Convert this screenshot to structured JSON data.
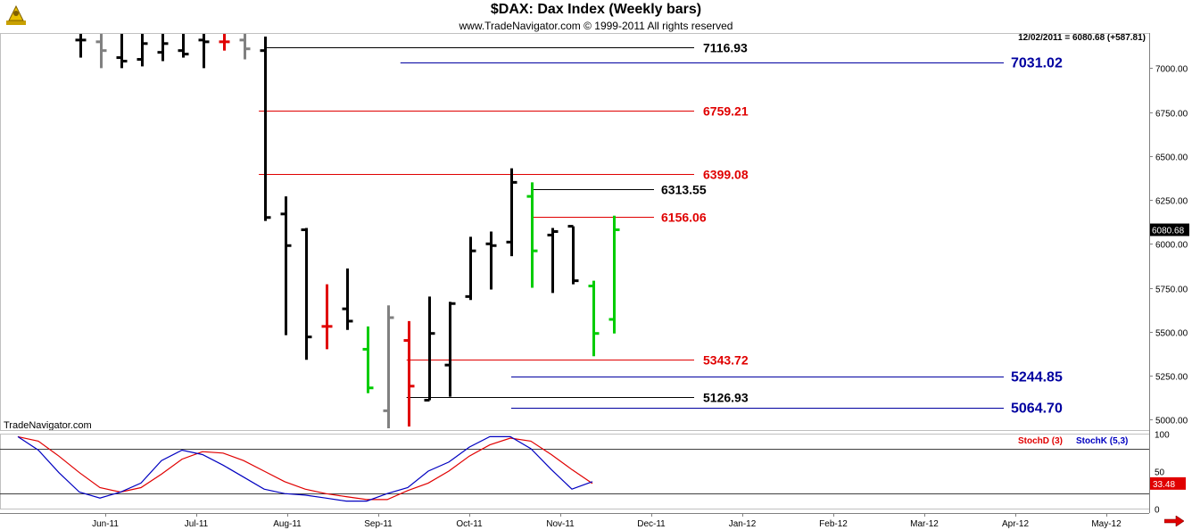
{
  "header": {
    "title": "$DAX:  Dax Index  (Weekly bars)",
    "subtitle": "www.TradeNavigator.com © 1999-2011 All rights reserved",
    "watermark": "TradeNavigator.com",
    "readout": "12/02/2011 = 6080.68 (+587.81)"
  },
  "colors": {
    "up": "#000000",
    "down_red": "#e00000",
    "gray": "#808080",
    "green": "#00cc00",
    "level_black": "#000000",
    "level_red": "#e00000",
    "level_blue": "#0000a0",
    "stochD": "#e00000",
    "stochK": "#0000c0",
    "last_price_bg": "#000000",
    "stoch_badge_bg": "#e00000"
  },
  "chart_data": [
    {
      "type": "bar",
      "subtype": "ohlc",
      "title": "$DAX:  Dax Index  (Weekly bars)",
      "ylim": [
        4940,
        7200
      ],
      "yticks": [
        "7000.00",
        "6750.00",
        "6500.00",
        "6250.00",
        "6000.00",
        "5750.00",
        "5500.00",
        "5250.00",
        "5000.00"
      ],
      "ytick_values": [
        7000,
        6750,
        6500,
        6250,
        6000,
        5750,
        5500,
        5250,
        5000
      ],
      "xticks": [
        "Jun-11",
        "Jul-11",
        "Aug-11",
        "Sep-11",
        "Oct-11",
        "Nov-11",
        "Dec-11",
        "Jan-12",
        "Feb-12",
        "Mar-12",
        "Apr-12",
        "May-12"
      ],
      "last_price_label": "6080.68",
      "bars": [
        {
          "o": 7160,
          "h": 7200,
          "l": 7060,
          "c": 7160,
          "color": "black"
        },
        {
          "o": 7150,
          "h": 7200,
          "l": 7000,
          "c": 7100,
          "color": "gray"
        },
        {
          "o": 7060,
          "h": 7200,
          "l": 7000,
          "c": 7040,
          "color": "black"
        },
        {
          "o": 7050,
          "h": 7200,
          "l": 7010,
          "c": 7140,
          "color": "black"
        },
        {
          "o": 7090,
          "h": 7200,
          "l": 7040,
          "c": 7140,
          "color": "black"
        },
        {
          "o": 7100,
          "h": 7200,
          "l": 7060,
          "c": 7080,
          "color": "black"
        },
        {
          "o": 7160,
          "h": 7200,
          "l": 7000,
          "c": 7150,
          "color": "black"
        },
        {
          "o": 7150,
          "h": 7200,
          "l": 7100,
          "c": 7150,
          "color": "red"
        },
        {
          "o": 7160,
          "h": 7200,
          "l": 7050,
          "c": 7110,
          "color": "gray"
        },
        {
          "o": 7100,
          "h": 7180,
          "l": 6130,
          "c": 6150,
          "color": "black"
        },
        {
          "o": 6170,
          "h": 6270,
          "l": 5480,
          "c": 5990,
          "color": "black"
        },
        {
          "o": 6080,
          "h": 6090,
          "l": 5340,
          "c": 5470,
          "color": "black"
        },
        {
          "o": 5530,
          "h": 5770,
          "l": 5400,
          "c": 5530,
          "color": "red"
        },
        {
          "o": 5630,
          "h": 5860,
          "l": 5510,
          "c": 5560,
          "color": "black"
        },
        {
          "o": 5400,
          "h": 5530,
          "l": 5150,
          "c": 5180,
          "color": "green"
        },
        {
          "o": 5050,
          "h": 5650,
          "l": 4950,
          "c": 5580,
          "color": "gray"
        },
        {
          "o": 5450,
          "h": 5560,
          "l": 4960,
          "c": 5190,
          "color": "red"
        },
        {
          "o": 5110,
          "h": 5700,
          "l": 5110,
          "c": 5490,
          "color": "black"
        },
        {
          "o": 5310,
          "h": 5670,
          "l": 5130,
          "c": 5660,
          "color": "black"
        },
        {
          "o": 5700,
          "h": 6040,
          "l": 5680,
          "c": 5960,
          "color": "black"
        },
        {
          "o": 6000,
          "h": 6070,
          "l": 5740,
          "c": 5990,
          "color": "black"
        },
        {
          "o": 6010,
          "h": 6430,
          "l": 5930,
          "c": 6350,
          "color": "black"
        },
        {
          "o": 6270,
          "h": 6350,
          "l": 5750,
          "c": 5960,
          "color": "green"
        },
        {
          "o": 6050,
          "h": 6090,
          "l": 5720,
          "c": 6070,
          "color": "black"
        },
        {
          "o": 6100,
          "h": 6100,
          "l": 5770,
          "c": 5790,
          "color": "black"
        },
        {
          "o": 5760,
          "h": 5790,
          "l": 5360,
          "c": 5490,
          "color": "green"
        },
        {
          "o": 5570,
          "h": 6160,
          "l": 5490,
          "c": 6080,
          "color": "green"
        }
      ],
      "levels": [
        {
          "value": 7116.93,
          "label": "7116.93",
          "color": "black",
          "x_start_bar": 9
        },
        {
          "value": 7031.02,
          "label": "7031.02",
          "color": "blue",
          "x_start_bar": 15.6
        },
        {
          "value": 6759.21,
          "label": "6759.21",
          "color": "red",
          "x_start_bar": 8.7
        },
        {
          "value": 6399.08,
          "label": "6399.08",
          "color": "red",
          "x_start_bar": 8.7
        },
        {
          "value": 6313.55,
          "label": "6313.55",
          "color": "black",
          "x_start_bar": 22
        },
        {
          "value": 6156.06,
          "label": "6156.06",
          "color": "red",
          "x_start_bar": 22
        },
        {
          "value": 5343.72,
          "label": "5343.72",
          "color": "red",
          "x_start_bar": 15.9
        },
        {
          "value": 5244.85,
          "label": "5244.85",
          "color": "blue",
          "x_start_bar": 21
        },
        {
          "value": 5126.93,
          "label": "5126.93",
          "color": "black",
          "x_start_bar": 15.9
        },
        {
          "value": 5064.7,
          "label": "5064.70",
          "color": "blue",
          "x_start_bar": 21
        }
      ]
    },
    {
      "type": "line",
      "title": "",
      "ylim": [
        0,
        100
      ],
      "yticks": [
        "100",
        "50",
        "0"
      ],
      "ytick_values": [
        100,
        50,
        0
      ],
      "reference_lines": [
        80,
        20
      ],
      "last_value_label": "33.48",
      "series": [
        {
          "name": "StochD (3)",
          "values": [
            96,
            90,
            70,
            48,
            28,
            22,
            28,
            46,
            66,
            76,
            74,
            64,
            50,
            36,
            26,
            20,
            16,
            12,
            12,
            24,
            34,
            50,
            70,
            85,
            94,
            90,
            72,
            52,
            33.48
          ]
        },
        {
          "name": "StochK (5,3)",
          "values": [
            96,
            78,
            48,
            22,
            14,
            22,
            34,
            64,
            78,
            72,
            58,
            42,
            26,
            20,
            18,
            14,
            10,
            10,
            20,
            28,
            50,
            62,
            82,
            96,
            96,
            80,
            52,
            26,
            36
          ]
        }
      ]
    }
  ]
}
